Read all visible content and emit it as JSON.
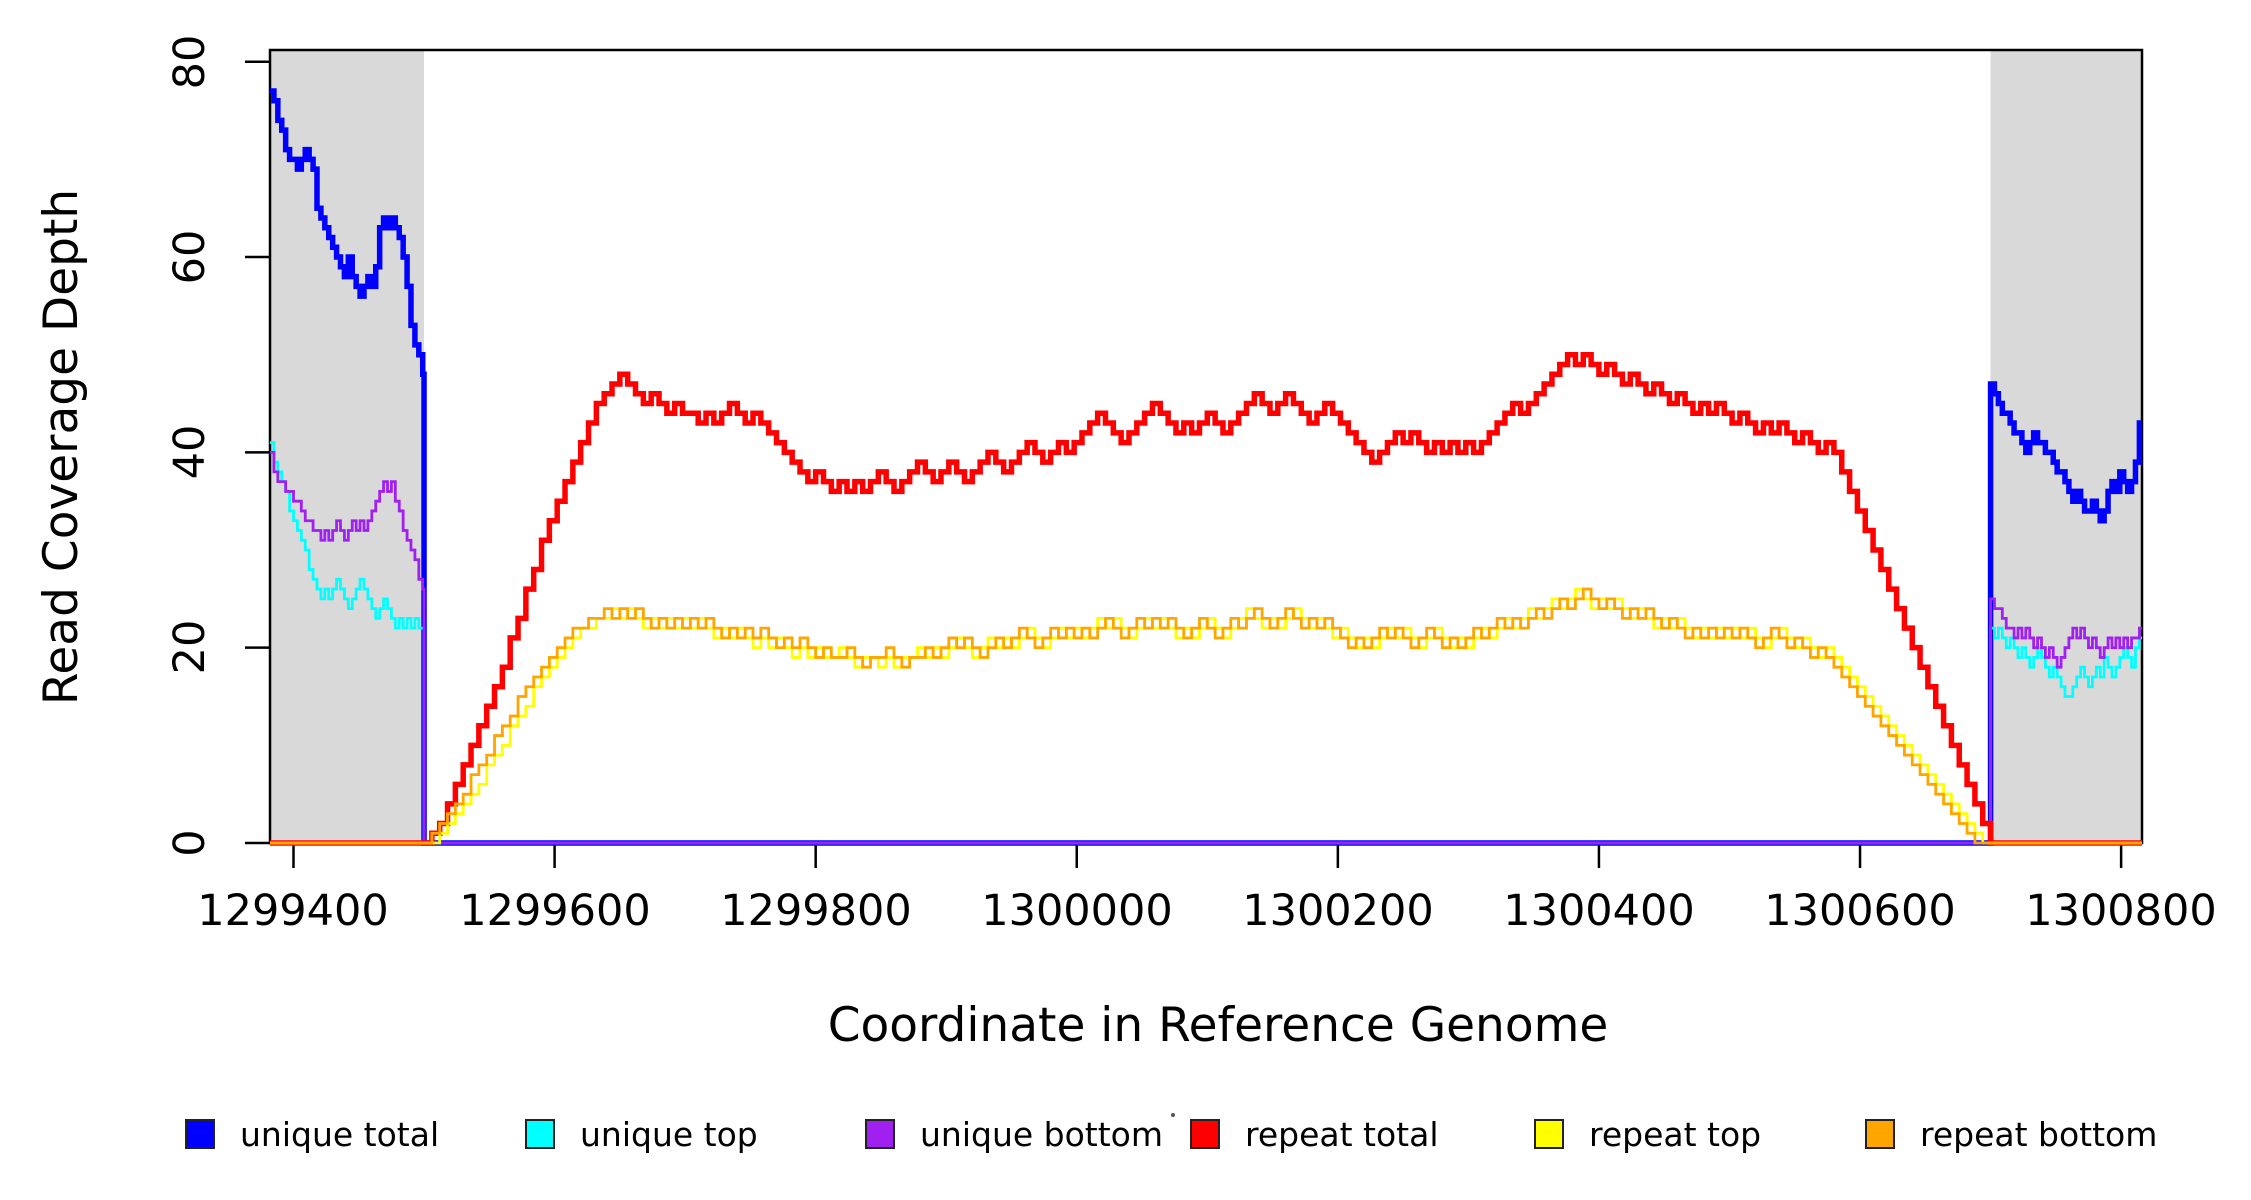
{
  "figure": {
    "y_axis_title": "Read Coverage Depth",
    "x_axis_title": "Coordinate in Reference Genome",
    "y_tick_labels": [
      "0",
      "20",
      "40",
      "60",
      "80"
    ],
    "x_tick_labels": [
      "1299400",
      "1299600",
      "1299800",
      "1300000",
      "1300200",
      "1300400",
      "1300600",
      "1300800"
    ]
  },
  "legend": {
    "items": [
      {
        "label": "unique total",
        "color": "#0000FF"
      },
      {
        "label": "unique top",
        "color": "#00FFFF"
      },
      {
        "label": "unique bottom",
        "color": "#A020F0"
      },
      {
        "label": "repeat total",
        "color": "#FF0000"
      },
      {
        "label": "repeat top",
        "color": "#FFFF00"
      },
      {
        "label": "repeat bottom",
        "color": "#FFA500"
      }
    ]
  },
  "chart_data": {
    "type": "step-line",
    "title": "",
    "xlabel": "Coordinate in Reference Genome",
    "ylabel": "Read Coverage Depth",
    "x_domain": [
      1299382,
      1300816
    ],
    "y_domain": [
      0,
      81.2
    ],
    "x_ticks": [
      1299400,
      1299600,
      1299800,
      1300000,
      1300200,
      1300400,
      1300600,
      1300800
    ],
    "y_ticks": [
      0,
      20,
      40,
      60,
      80
    ],
    "grid": false,
    "legend_position": "bottom",
    "shade_color": "#D9D9D9",
    "shaded_regions": [
      {
        "name": "left-flank",
        "x0": 1299382,
        "x1": 1299500
      },
      {
        "name": "right-flank",
        "x0": 1300700,
        "x1": 1300816
      }
    ],
    "series": [
      {
        "name": "unique total",
        "color": "#0000FF",
        "lwd": 5.5,
        "segments": [
          {
            "t": "s",
            "x0": 1299382,
            "dx": 3,
            "x1": 1299500,
            "v": [
              77,
              76,
              74,
              73,
              71,
              70,
              70,
              69,
              70,
              71,
              70,
              69,
              65,
              64,
              63,
              62,
              61,
              60,
              59,
              58,
              60,
              58,
              57,
              56,
              57,
              58,
              57,
              59,
              63,
              64,
              63,
              64,
              63,
              62,
              60,
              57,
              53,
              51,
              50,
              48
            ]
          },
          {
            "t": "f",
            "x0": 1299500,
            "x1": 1300700,
            "y": 0
          },
          {
            "t": "s",
            "x0": 1300700,
            "dx": 3,
            "x1": 1300816,
            "v": [
              47,
              46,
              45,
              44,
              44,
              43,
              42,
              42,
              41,
              40,
              41,
              42,
              41,
              41,
              40,
              40,
              39,
              38,
              38,
              37,
              36,
              35,
              36,
              35,
              34,
              34,
              35,
              34,
              33,
              34,
              36,
              37,
              36,
              38,
              37,
              36,
              37,
              39,
              43
            ]
          }
        ]
      },
      {
        "name": "unique top",
        "color": "#00FFFF",
        "lwd": 2.8,
        "segments": [
          {
            "t": "s",
            "x0": 1299382,
            "dx": 3,
            "x1": 1299500,
            "v": [
              41,
              39,
              38,
              37,
              36,
              34,
              33,
              32,
              31,
              30,
              28,
              27,
              26,
              25,
              26,
              25,
              26,
              27,
              26,
              25,
              24,
              25,
              26,
              27,
              26,
              25,
              24,
              23,
              24,
              25,
              24,
              23,
              22,
              23,
              22,
              23,
              22,
              23,
              22,
              22
            ]
          },
          {
            "t": "f",
            "x0": 1299500,
            "x1": 1300700,
            "y": 0
          },
          {
            "t": "s",
            "x0": 1300700,
            "dx": 3,
            "x1": 1300816,
            "v": [
              22,
              21,
              22,
              21,
              20,
              21,
              20,
              19,
              20,
              19,
              18,
              19,
              20,
              19,
              18,
              17,
              18,
              17,
              16,
              15,
              15,
              16,
              17,
              18,
              17,
              16,
              17,
              18,
              17,
              19,
              18,
              17,
              18,
              19,
              20,
              19,
              18,
              20,
              21
            ]
          }
        ]
      },
      {
        "name": "unique bottom",
        "color": "#A020F0",
        "lwd": 2.8,
        "segments": [
          {
            "t": "s",
            "x0": 1299382,
            "dx": 3,
            "x1": 1299500,
            "v": [
              40,
              38,
              37,
              37,
              36,
              36,
              35,
              35,
              34,
              33,
              33,
              32,
              32,
              31,
              32,
              31,
              32,
              33,
              32,
              31,
              32,
              33,
              32,
              33,
              32,
              33,
              34,
              35,
              36,
              37,
              36,
              37,
              35,
              34,
              32,
              31,
              30,
              29,
              27,
              26
            ]
          },
          {
            "t": "f",
            "x0": 1299500,
            "x1": 1300700,
            "y": 0
          },
          {
            "t": "s",
            "x0": 1300700,
            "dx": 3,
            "x1": 1300816,
            "v": [
              25,
              24,
              24,
              23,
              22,
              22,
              21,
              22,
              21,
              22,
              21,
              20,
              21,
              20,
              19,
              20,
              19,
              18,
              19,
              20,
              21,
              22,
              21,
              22,
              21,
              20,
              21,
              20,
              19,
              20,
              21,
              20,
              21,
              20,
              21,
              20,
              21,
              21,
              22
            ]
          }
        ]
      },
      {
        "name": "repeat total",
        "color": "#FF0000",
        "lwd": 5.5,
        "segments": [
          {
            "t": "f",
            "x0": 1299382,
            "x1": 1299500,
            "y": 0
          },
          {
            "t": "s",
            "x0": 1299500,
            "dx": 6,
            "x1": 1300700,
            "v": [
              0,
              1,
              2,
              4,
              6,
              8,
              10,
              12,
              14,
              16,
              18,
              21,
              23,
              26,
              28,
              31,
              33,
              35,
              37,
              39,
              41,
              43,
              45,
              46,
              47,
              48,
              47,
              46,
              45,
              46,
              45,
              44,
              45,
              44,
              44,
              43,
              44,
              43,
              44,
              45,
              44,
              43,
              44,
              43,
              42,
              41,
              40,
              39,
              38,
              37,
              38,
              37,
              36,
              37,
              36,
              37,
              36,
              37,
              38,
              37,
              36,
              37,
              38,
              39,
              38,
              37,
              38,
              39,
              38,
              37,
              38,
              39,
              40,
              39,
              38,
              39,
              40,
              41,
              40,
              39,
              40,
              41,
              40,
              41,
              42,
              43,
              44,
              43,
              42,
              41,
              42,
              43,
              44,
              45,
              44,
              43,
              42,
              43,
              42,
              43,
              44,
              43,
              42,
              43,
              44,
              45,
              46,
              45,
              44,
              45,
              46,
              45,
              44,
              43,
              44,
              45,
              44,
              43,
              42,
              41,
              40,
              39,
              40,
              41,
              42,
              41,
              42,
              41,
              40,
              41,
              40,
              41,
              40,
              41,
              40,
              41,
              42,
              43,
              44,
              45,
              44,
              45,
              46,
              47,
              48,
              49,
              50,
              49,
              50,
              49,
              48,
              49,
              48,
              47,
              48,
              47,
              46,
              47,
              46,
              45,
              46,
              45,
              44,
              45,
              44,
              45,
              44,
              43,
              44,
              43,
              42,
              43,
              42,
              43,
              42,
              41,
              42,
              41,
              40,
              41,
              40,
              38,
              36,
              34,
              32,
              30,
              28,
              26,
              24,
              22,
              20,
              18,
              16,
              14,
              12,
              10,
              8,
              6,
              4,
              2,
              0
            ]
          },
          {
            "t": "f",
            "x0": 1300700,
            "x1": 1300816,
            "y": 0
          }
        ]
      },
      {
        "name": "repeat top",
        "color": "#FFFF00",
        "lwd": 2.8,
        "segments": [
          {
            "t": "f",
            "x0": 1299382,
            "x1": 1299500,
            "y": 0
          },
          {
            "t": "s",
            "x0": 1299500,
            "dx": 6,
            "x1": 1300700,
            "v": [
              0,
              0,
              1,
              2,
              3,
              4,
              5,
              6,
              8,
              9,
              10,
              12,
              13,
              14,
              16,
              17,
              18,
              19,
              20,
              21,
              22,
              22,
              23,
              23,
              24,
              23,
              24,
              23,
              22,
              23,
              22,
              23,
              22,
              23,
              22,
              23,
              22,
              21,
              22,
              21,
              22,
              21,
              20,
              21,
              20,
              21,
              20,
              19,
              20,
              19,
              20,
              19,
              19,
              20,
              19,
              18,
              19,
              19,
              18,
              19,
              18,
              19,
              19,
              20,
              19,
              20,
              19,
              20,
              21,
              20,
              19,
              20,
              21,
              20,
              21,
              20,
              21,
              22,
              21,
              20,
              21,
              22,
              21,
              22,
              21,
              22,
              23,
              22,
              23,
              22,
              21,
              22,
              23,
              22,
              23,
              22,
              21,
              22,
              21,
              22,
              23,
              22,
              21,
              22,
              23,
              24,
              23,
              22,
              23,
              22,
              23,
              24,
              23,
              22,
              23,
              22,
              21,
              22,
              21,
              20,
              21,
              20,
              21,
              22,
              21,
              22,
              21,
              20,
              21,
              22,
              21,
              20,
              21,
              20,
              21,
              22,
              21,
              22,
              23,
              22,
              23,
              24,
              23,
              24,
              25,
              24,
              25,
              26,
              25,
              24,
              25,
              24,
              25,
              24,
              23,
              24,
              23,
              22,
              23,
              22,
              23,
              22,
              21,
              22,
              21,
              22,
              21,
              22,
              21,
              22,
              21,
              20,
              21,
              22,
              21,
              20,
              21,
              20,
              19,
              20,
              19,
              18,
              17,
              16,
              15,
              14,
              13,
              12,
              11,
              10,
              9,
              8,
              7,
              6,
              5,
              4,
              3,
              2,
              1,
              0,
              0
            ]
          },
          {
            "t": "f",
            "x0": 1300700,
            "x1": 1300816,
            "y": 0
          }
        ]
      },
      {
        "name": "repeat bottom",
        "color": "#FFA500",
        "lwd": 2.8,
        "segments": [
          {
            "t": "f",
            "x0": 1299382,
            "x1": 1299500,
            "y": 0
          },
          {
            "t": "s",
            "x0": 1299500,
            "dx": 6,
            "x1": 1300700,
            "v": [
              0,
              1,
              2,
              3,
              4,
              5,
              7,
              8,
              9,
              11,
              12,
              13,
              15,
              16,
              17,
              18,
              19,
              20,
              21,
              22,
              22,
              23,
              23,
              24,
              23,
              24,
              23,
              24,
              23,
              22,
              23,
              22,
              23,
              22,
              23,
              22,
              23,
              22,
              21,
              22,
              21,
              22,
              21,
              22,
              21,
              20,
              21,
              20,
              21,
              20,
              19,
              20,
              19,
              19,
              20,
              19,
              18,
              19,
              19,
              20,
              19,
              18,
              19,
              19,
              20,
              19,
              20,
              21,
              20,
              21,
              20,
              19,
              20,
              21,
              20,
              21,
              22,
              21,
              20,
              21,
              22,
              21,
              22,
              21,
              22,
              21,
              22,
              23,
              22,
              21,
              22,
              23,
              22,
              23,
              22,
              23,
              22,
              21,
              22,
              23,
              22,
              21,
              22,
              23,
              22,
              23,
              24,
              23,
              22,
              23,
              24,
              23,
              22,
              23,
              22,
              23,
              22,
              21,
              20,
              21,
              20,
              21,
              22,
              21,
              22,
              21,
              20,
              21,
              22,
              21,
              20,
              21,
              20,
              21,
              22,
              21,
              22,
              23,
              22,
              23,
              22,
              23,
              24,
              23,
              24,
              25,
              24,
              25,
              26,
              25,
              24,
              25,
              24,
              23,
              24,
              23,
              24,
              23,
              22,
              23,
              22,
              21,
              22,
              21,
              22,
              21,
              22,
              21,
              22,
              21,
              20,
              21,
              22,
              21,
              20,
              21,
              20,
              19,
              20,
              19,
              18,
              17,
              16,
              15,
              14,
              13,
              12,
              11,
              10,
              9,
              8,
              7,
              6,
              5,
              4,
              3,
              2,
              1,
              0,
              0,
              0
            ]
          },
          {
            "t": "f",
            "x0": 1300700,
            "x1": 1300816,
            "y": 0
          }
        ]
      }
    ]
  }
}
